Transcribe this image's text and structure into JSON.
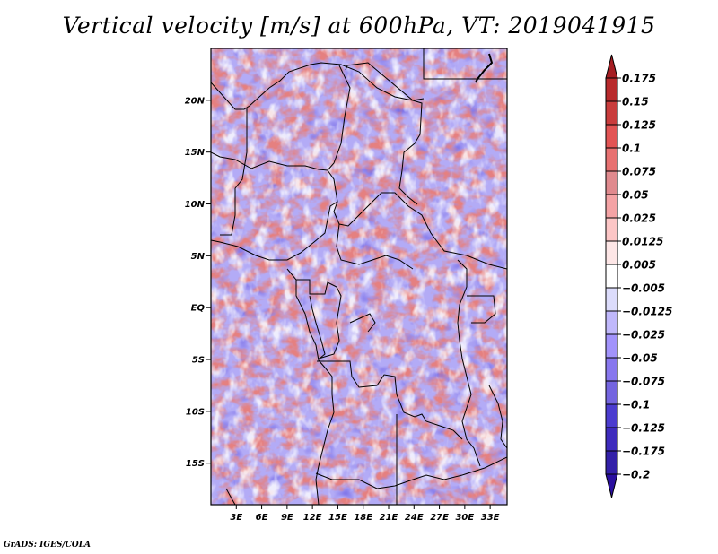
{
  "chart_data": {
    "type": "heatmap",
    "title": "Vertical velocity [m/s] at 600hPa, VT: 2019041915",
    "xlabel": "",
    "ylabel": "",
    "map_region": "Central Africa (Chad, Cameroon, DR Congo, Angola region)",
    "xlim": [
      0,
      35
    ],
    "ylim": [
      -19,
      25
    ],
    "x_ticks": [
      {
        "value": 3,
        "label": "3E"
      },
      {
        "value": 6,
        "label": "6E"
      },
      {
        "value": 9,
        "label": "9E"
      },
      {
        "value": 12,
        "label": "12E"
      },
      {
        "value": 15,
        "label": "15E"
      },
      {
        "value": 18,
        "label": "18E"
      },
      {
        "value": 21,
        "label": "21E"
      },
      {
        "value": 24,
        "label": "24E"
      },
      {
        "value": 27,
        "label": "27E"
      },
      {
        "value": 30,
        "label": "30E"
      },
      {
        "value": 33,
        "label": "33E"
      }
    ],
    "y_ticks": [
      {
        "value": 20,
        "label": "20N"
      },
      {
        "value": 15,
        "label": "15N"
      },
      {
        "value": 10,
        "label": "10N"
      },
      {
        "value": 5,
        "label": "5N"
      },
      {
        "value": 0,
        "label": "EQ"
      },
      {
        "value": -5,
        "label": "5S"
      },
      {
        "value": -10,
        "label": "10S"
      },
      {
        "value": -15,
        "label": "15S"
      }
    ],
    "colorbar": {
      "orientation": "vertical",
      "location": "right",
      "extend": "both",
      "labels": [
        "0.175",
        "0.15",
        "0.125",
        "0.1",
        "0.075",
        "0.05",
        "0.025",
        "0.0125",
        "0.005",
        "-0.005",
        "-0.0125",
        "-0.025",
        "-0.05",
        "-0.075",
        "-0.1",
        "-0.125",
        "-0.175",
        "-0.2"
      ],
      "colors": [
        "#a51d22",
        "#b82a2c",
        "#c93c3c",
        "#e25454",
        "#e77171",
        "#e08a8e",
        "#f4a3a5",
        "#fcc6c6",
        "#fde6e6",
        "#ffffff",
        "#dcdcfb",
        "#c0b8fb",
        "#a293fb",
        "#8877ee",
        "#7465e0",
        "#4b3ccf",
        "#3e2bbd",
        "#3320a8",
        "#2a0fa0"
      ],
      "over_color": "#a51d22",
      "under_color": "#2a0fa0"
    }
  },
  "footer": "GrADS: IGES/COLA"
}
